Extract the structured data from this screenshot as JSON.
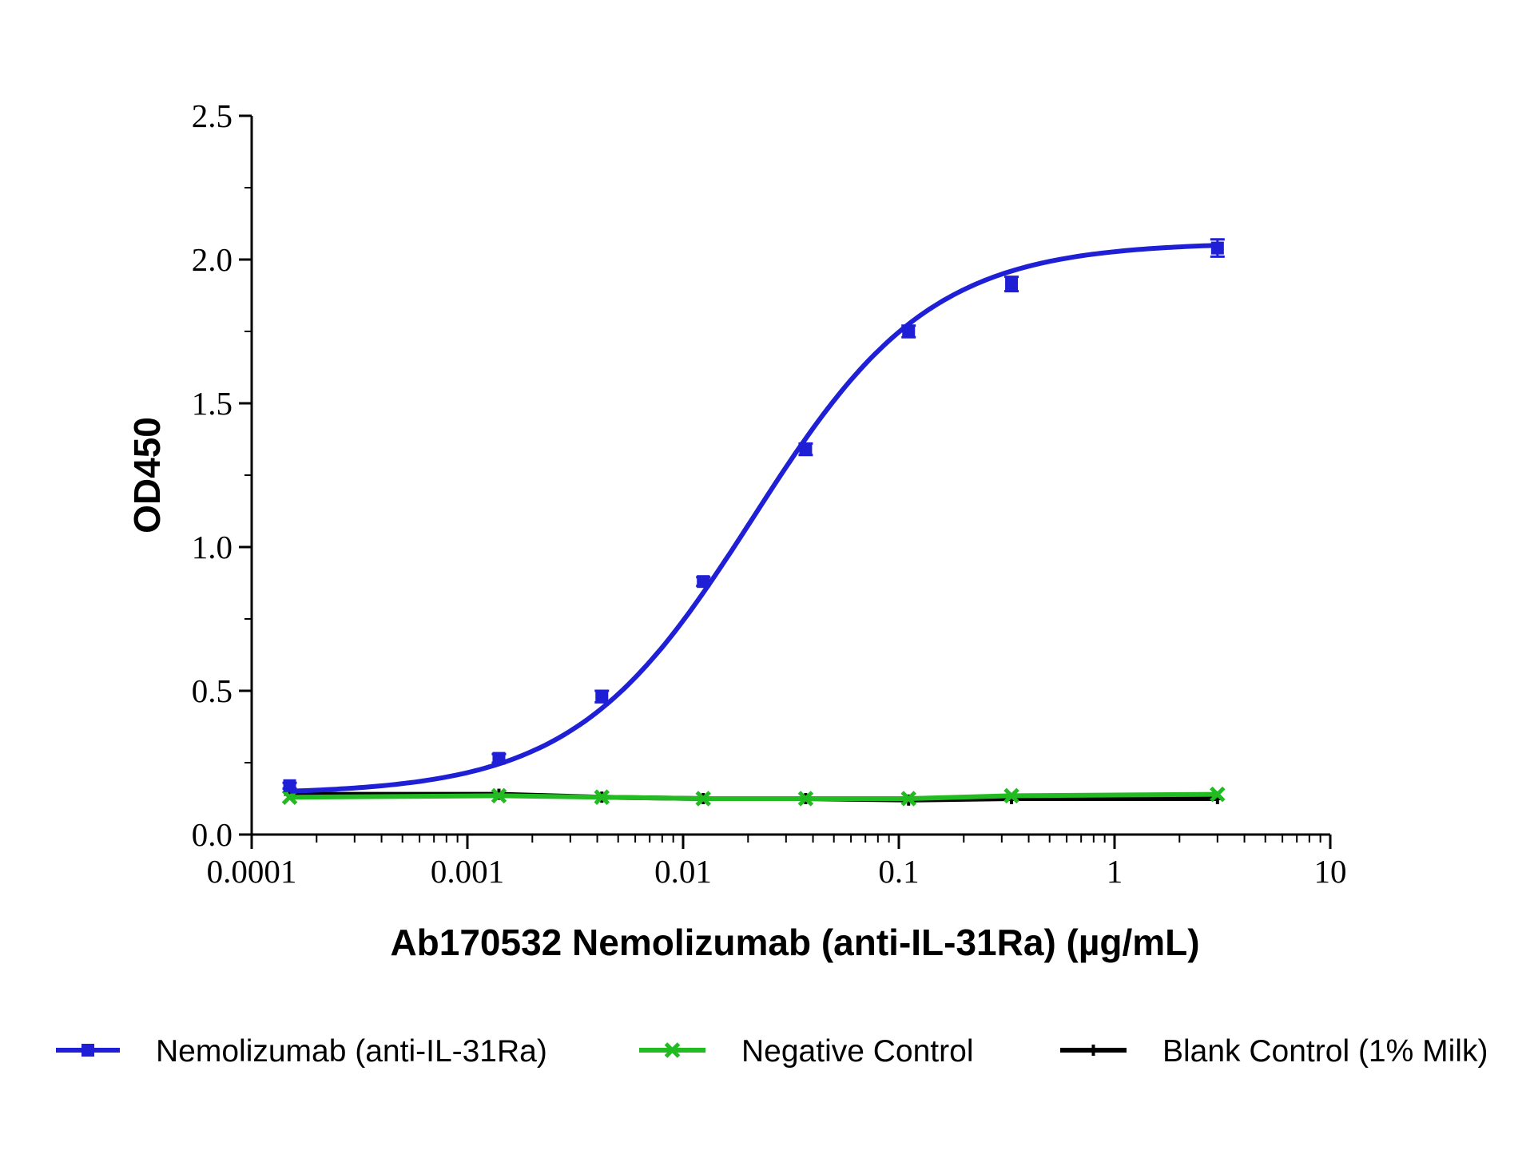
{
  "chart_data": {
    "type": "line",
    "title": "",
    "xlabel": "Ab170532 Nemolizumab (anti-IL-31Ra) (µg/mL)",
    "ylabel": "OD450",
    "xscale": "log",
    "xlim": [
      0.0001,
      10
    ],
    "ylim": [
      0.0,
      2.5
    ],
    "xticks": [
      "0.0001",
      "0.001",
      "0.01",
      "0.1",
      "1",
      "10"
    ],
    "yticks": [
      "0.0",
      "0.5",
      "1.0",
      "1.5",
      "2.0",
      "2.5"
    ],
    "grid": false,
    "legend_position": "bottom",
    "x": [
      0.00015,
      0.0014,
      0.0042,
      0.0124,
      0.037,
      0.111,
      0.333,
      3.0
    ],
    "series": [
      {
        "name": "Nemolizumab (anti-IL-31Ra)",
        "color": "#1f1fd6",
        "marker": "square",
        "values": [
          0.17,
          0.265,
          0.48,
          0.88,
          1.34,
          1.75,
          1.915,
          2.04
        ],
        "errors": [
          0.01,
          0.015,
          0.02,
          0.015,
          0.02,
          0.02,
          0.025,
          0.03
        ],
        "fit": "4PL",
        "fit_params": {
          "bottom": 0.14,
          "top": 2.06,
          "ec50": 0.021,
          "hill": 1.05
        }
      },
      {
        "name": "Negative Control",
        "color": "#22bb22",
        "marker": "x",
        "values": [
          0.13,
          0.135,
          0.13,
          0.125,
          0.125,
          0.125,
          0.135,
          0.14
        ]
      },
      {
        "name": "Blank Control (1% Milk)",
        "color": "#000000",
        "marker": "plus",
        "values": [
          0.14,
          0.14,
          0.13,
          0.125,
          0.125,
          0.12,
          0.125,
          0.125
        ]
      }
    ]
  }
}
